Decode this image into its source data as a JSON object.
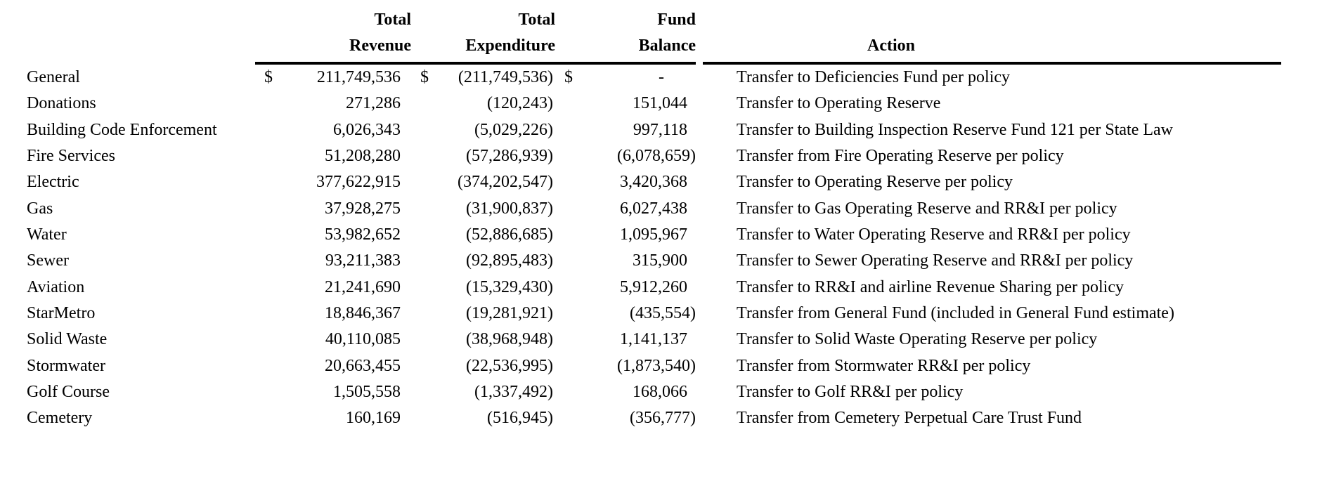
{
  "document": {
    "background_color": "#ffffff",
    "text_color": "#000000"
  },
  "table": {
    "column_headers": {
      "fund": "",
      "revenue": [
        "Total",
        "Revenue"
      ],
      "expenditure": [
        "Total",
        "Expenditure"
      ],
      "balance": [
        "Fund",
        "Balance"
      ],
      "action": "Action"
    },
    "first_row_currency_symbol": "$",
    "rows": [
      {
        "fund": "General",
        "currency": "$",
        "revenue": "211,749,536",
        "expenditure": "(211,749,536)",
        "balance": "-",
        "action": "Transfer to Deficiencies Fund per policy"
      },
      {
        "fund": "Donations",
        "revenue": "271,286",
        "expenditure": "(120,243)",
        "balance": "151,044",
        "action": "Transfer to Operating Reserve"
      },
      {
        "fund": "Building Code Enforcement",
        "revenue": "6,026,343",
        "expenditure": "(5,029,226)",
        "balance": "997,118",
        "action": "Transfer to Building Inspection Reserve Fund 121 per State Law"
      },
      {
        "fund": "Fire Services",
        "revenue": "51,208,280",
        "expenditure": "(57,286,939)",
        "balance": "(6,078,659)",
        "action": "Transfer from Fire Operating Reserve per policy"
      },
      {
        "fund": "Electric",
        "revenue": "377,622,915",
        "expenditure": "(374,202,547)",
        "balance": "3,420,368",
        "action": "Transfer to Operating Reserve per policy"
      },
      {
        "fund": "Gas",
        "revenue": "37,928,275",
        "expenditure": "(31,900,837)",
        "balance": "6,027,438",
        "action": "Transfer to Gas Operating Reserve and RR&I per policy"
      },
      {
        "fund": "Water",
        "revenue": "53,982,652",
        "expenditure": "(52,886,685)",
        "balance": "1,095,967",
        "action": "Transfer to Water Operating Reserve and RR&I per policy"
      },
      {
        "fund": "Sewer",
        "revenue": "93,211,383",
        "expenditure": "(92,895,483)",
        "balance": "315,900",
        "action": "Transfer to Sewer Operating Reserve and RR&I per policy"
      },
      {
        "fund": "Aviation",
        "revenue": "21,241,690",
        "expenditure": "(15,329,430)",
        "balance": "5,912,260",
        "action": "Transfer to RR&I and airline Revenue Sharing per policy"
      },
      {
        "fund": "StarMetro",
        "revenue": "18,846,367",
        "expenditure": "(19,281,921)",
        "balance": "(435,554)",
        "action": "Transfer from General Fund (included in General Fund estimate)"
      },
      {
        "fund": "Solid Waste",
        "revenue": "40,110,085",
        "expenditure": "(38,968,948)",
        "balance": "1,141,137",
        "action": "Transfer to Solid Waste Operating Reserve per policy"
      },
      {
        "fund": "Stormwater",
        "revenue": "20,663,455",
        "expenditure": "(22,536,995)",
        "balance": "(1,873,540)",
        "action": "Transfer from Stormwater RR&I per policy"
      },
      {
        "fund": "Golf Course",
        "revenue": "1,505,558",
        "expenditure": "(1,337,492)",
        "balance": "168,066",
        "action": "Transfer to Golf RR&I per policy"
      },
      {
        "fund": "Cemetery",
        "revenue": "160,169",
        "expenditure": "(516,945)",
        "balance": "(356,777)",
        "action": "Transfer from Cemetery Perpetual Care Trust Fund"
      }
    ]
  }
}
